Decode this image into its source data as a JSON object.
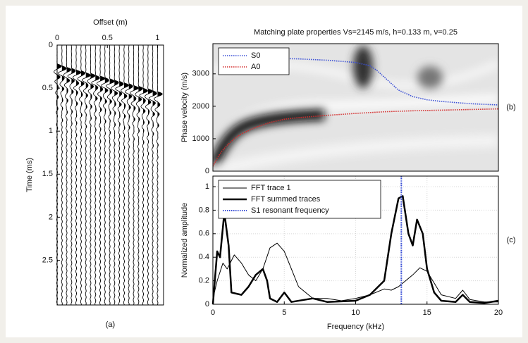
{
  "chart_data": [
    {
      "type": "wiggle",
      "x_label": "Offset (m)",
      "y_label": "Time (ms)",
      "annotation": "(a)",
      "x": [
        0,
        0.048,
        0.095,
        0.143,
        0.19,
        0.238,
        0.286,
        0.333,
        0.381,
        0.429,
        0.476,
        0.524,
        0.571,
        0.619,
        0.667,
        0.714,
        0.762,
        0.81,
        0.857,
        0.905,
        0.952,
        1.0
      ],
      "values": [
        0.22,
        0.24,
        0.26,
        0.27,
        0.29,
        0.3,
        0.32,
        0.33,
        0.35,
        0.36,
        0.38,
        0.39,
        0.41,
        0.42,
        0.44,
        0.45,
        0.47,
        0.48,
        0.5,
        0.51,
        0.53,
        0.54
      ],
      "xlim": [
        0,
        1.06
      ],
      "xticks": [
        0,
        0.5,
        1
      ],
      "ylim": [
        0,
        3.02
      ],
      "yticks": [
        0,
        0.5,
        1,
        1.5,
        2,
        2.5
      ],
      "y_reversed": true,
      "color": "#000000"
    },
    {
      "type": "line",
      "title": "Matching plate properties Vs=2145 m/s, h=0.133 m, ν=0.25",
      "y_label": "Phase velocity (m/s)",
      "annotation": "(b)",
      "xlim": [
        0,
        20
      ],
      "ylim": [
        0,
        3930
      ],
      "yticks": [
        0,
        1000,
        2000,
        3000
      ],
      "legend": "top-left",
      "series": [
        {
          "name": "S0",
          "color": "#3a4fd6",
          "dash": true,
          "x": [
            0.5,
            2,
            4,
            6,
            8,
            10,
            11,
            11.5,
            12,
            12.5,
            13,
            14,
            15,
            16,
            18,
            20
          ],
          "values": [
            3500,
            3490,
            3480,
            3460,
            3420,
            3350,
            3250,
            3100,
            2900,
            2700,
            2500,
            2300,
            2200,
            2150,
            2080,
            2040
          ]
        },
        {
          "name": "A0",
          "color": "#d42a2a",
          "dash": true,
          "x": [
            0,
            0.3,
            0.6,
            1,
            1.5,
            2,
            3,
            4,
            5,
            6,
            8,
            10,
            12,
            14,
            16,
            18,
            20
          ],
          "values": [
            150,
            400,
            600,
            800,
            1000,
            1150,
            1350,
            1500,
            1600,
            1650,
            1720,
            1780,
            1830,
            1860,
            1880,
            1900,
            1920
          ]
        }
      ]
    },
    {
      "type": "line",
      "x_label": "Frequency (kHz)",
      "y_label": "Normalized amplitude",
      "annotation": "(c)",
      "xlim": [
        0,
        20
      ],
      "xticks": [
        0,
        5,
        10,
        15,
        20
      ],
      "ylim": [
        0,
        1.09
      ],
      "yticks": [
        0,
        0.2,
        0.4,
        0.6,
        0.8,
        1
      ],
      "grid": true,
      "legend": "top-left",
      "series": [
        {
          "name": "FFT trace 1",
          "color": "#000000",
          "width": 1,
          "x": [
            0,
            0.3,
            0.7,
            1,
            1.5,
            2,
            2.5,
            3,
            3.5,
            4,
            4.5,
            5,
            5.5,
            6,
            7,
            8,
            9,
            10,
            11,
            12,
            12.5,
            13,
            13.5,
            14,
            14.5,
            15,
            15.5,
            16,
            17,
            17.5,
            18,
            19,
            20
          ],
          "values": [
            0.05,
            0.2,
            0.35,
            0.3,
            0.42,
            0.35,
            0.25,
            0.2,
            0.3,
            0.48,
            0.52,
            0.45,
            0.3,
            0.15,
            0.05,
            0.05,
            0.03,
            0.05,
            0.08,
            0.13,
            0.12,
            0.15,
            0.2,
            0.25,
            0.31,
            0.28,
            0.18,
            0.08,
            0.05,
            0.12,
            0.04,
            0.02,
            0.02
          ]
        },
        {
          "name": "FFT summed traces",
          "color": "#000000",
          "width": 2.5,
          "x": [
            0,
            0.3,
            0.5,
            0.8,
            1.1,
            1.3,
            2,
            2.5,
            3,
            3.5,
            3.8,
            4,
            4.5,
            5,
            5.5,
            7,
            8,
            10,
            11,
            12,
            12.5,
            13,
            13.3,
            13.7,
            14,
            14.3,
            14.7,
            15,
            15.5,
            16,
            17,
            17.5,
            18,
            19,
            20
          ],
          "values": [
            0,
            0.45,
            0.4,
            0.78,
            0.5,
            0.1,
            0.08,
            0.15,
            0.25,
            0.3,
            0.2,
            0.05,
            0.02,
            0.1,
            0.02,
            0.05,
            0.02,
            0.03,
            0.08,
            0.2,
            0.6,
            0.9,
            0.92,
            0.6,
            0.5,
            0.72,
            0.6,
            0.3,
            0.1,
            0.03,
            0.02,
            0.08,
            0.02,
            0.01,
            0.03
          ]
        }
      ],
      "vlines": [
        {
          "name": "S1 resonant frequency",
          "color": "#3a4fd6",
          "x": 13.2
        }
      ]
    }
  ]
}
